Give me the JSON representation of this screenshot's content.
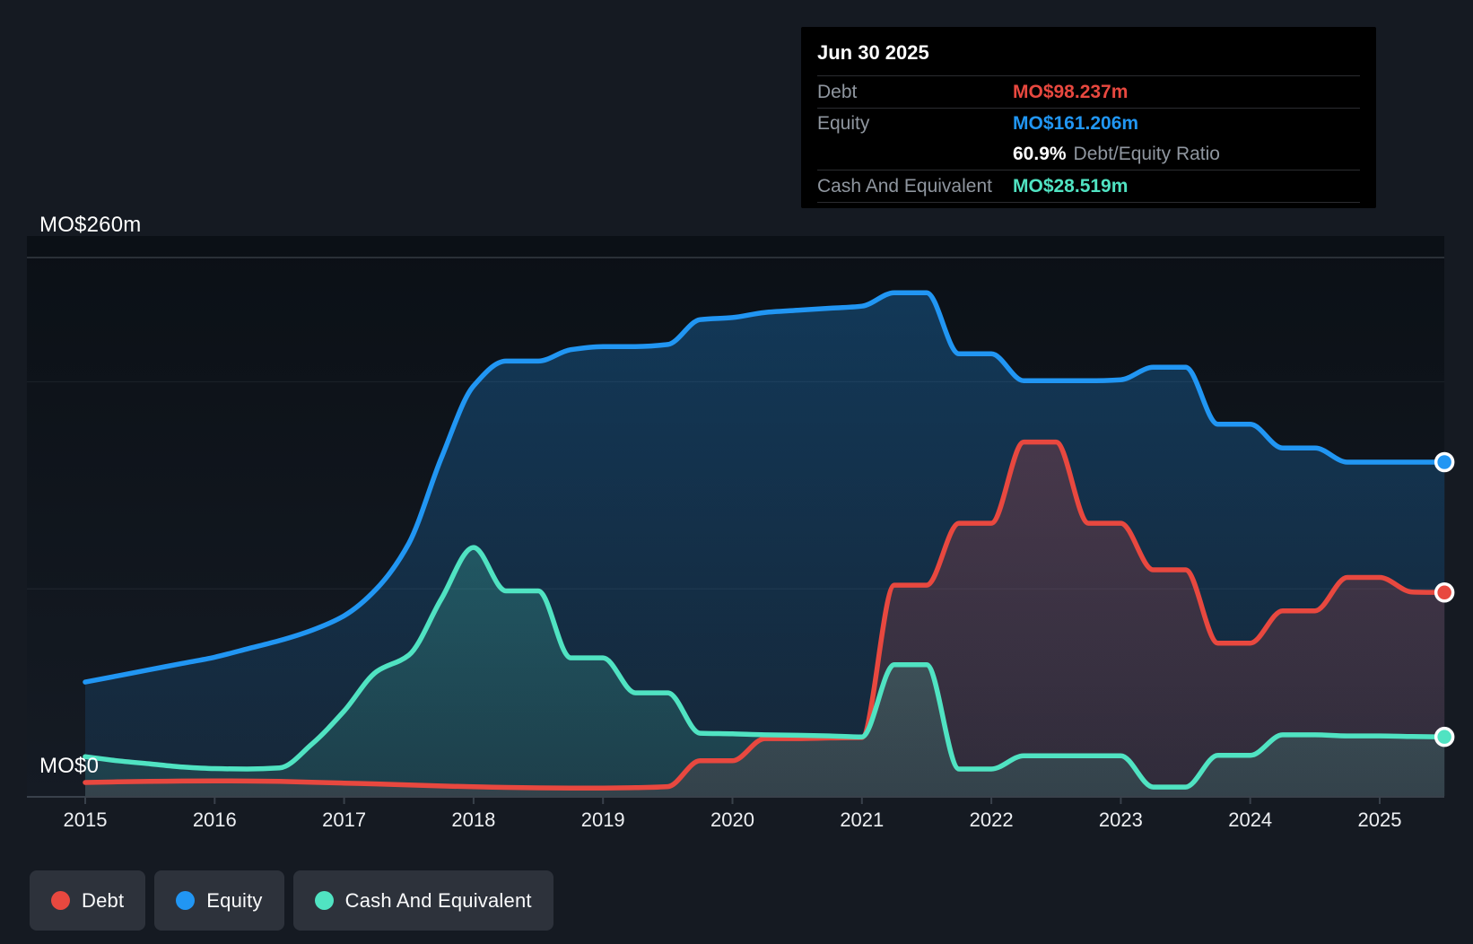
{
  "colors": {
    "debt": "#e8483f",
    "equity": "#2196f3",
    "cash": "#50e3c2",
    "page_bg": "#151a22",
    "plot_bg_top": "#0b1016",
    "plot_bg_bottom": "#151b24",
    "tooltip_bg": "#000000",
    "chip_bg": "#2d323b",
    "axis_line": "#39414b",
    "grid_strong": "rgba(200,212,224,0.22)",
    "grid_faint": "rgba(200,212,224,0.07)"
  },
  "tooltip": {
    "title": "Jun 30 2025",
    "debt_label": "Debt",
    "debt_value": "MO$98.237m",
    "equity_label": "Equity",
    "equity_value": "MO$161.206m",
    "ratio_value": "60.9%",
    "ratio_label": "Debt/Equity Ratio",
    "cash_label": "Cash And Equivalent",
    "cash_value": "MO$28.519m"
  },
  "y_axis": {
    "top_label": "MO$260m",
    "zero_label": "MO$0"
  },
  "legend": [
    {
      "id": "debt",
      "label": "Debt"
    },
    {
      "id": "equity",
      "label": "Equity"
    },
    {
      "id": "cash",
      "label": "Cash And Equivalent"
    }
  ],
  "chart_data": {
    "type": "area",
    "title": "Debt to Equity History (MO$ millions)",
    "x_unit": "year",
    "ylim": [
      0,
      260
    ],
    "xlim": [
      2015.0,
      2025.5
    ],
    "grid_values": [
      260,
      200,
      100,
      0
    ],
    "x_ticks": [
      "2015",
      "2016",
      "2017",
      "2018",
      "2019",
      "2020",
      "2021",
      "2022",
      "2023",
      "2024",
      "2025"
    ],
    "legend_position": "bottom-left",
    "series": [
      {
        "name": "Equity",
        "color_key": "equity",
        "end_marker": true,
        "points": [
          [
            2015.0,
            55
          ],
          [
            2015.25,
            58
          ],
          [
            2015.5,
            61
          ],
          [
            2015.75,
            64
          ],
          [
            2016.0,
            67
          ],
          [
            2016.25,
            71
          ],
          [
            2016.5,
            75
          ],
          [
            2016.75,
            80
          ],
          [
            2017.0,
            87
          ],
          [
            2017.25,
            100
          ],
          [
            2017.5,
            122
          ],
          [
            2017.75,
            163
          ],
          [
            2018.0,
            198
          ],
          [
            2018.25,
            210
          ],
          [
            2018.5,
            210
          ],
          [
            2018.75,
            215.5
          ],
          [
            2019.0,
            217
          ],
          [
            2019.25,
            217
          ],
          [
            2019.5,
            218
          ],
          [
            2019.75,
            230
          ],
          [
            2020.0,
            231
          ],
          [
            2020.25,
            233.5
          ],
          [
            2020.5,
            234.5
          ],
          [
            2020.75,
            235.5
          ],
          [
            2021.0,
            236.5
          ],
          [
            2021.25,
            243
          ],
          [
            2021.5,
            243
          ],
          [
            2021.75,
            213.5
          ],
          [
            2022.0,
            213.5
          ],
          [
            2022.25,
            200.5
          ],
          [
            2022.5,
            200.5
          ],
          [
            2022.75,
            200.5
          ],
          [
            2023.0,
            201
          ],
          [
            2023.25,
            207
          ],
          [
            2023.5,
            207
          ],
          [
            2023.75,
            179.5
          ],
          [
            2024.0,
            179.5
          ],
          [
            2024.25,
            168
          ],
          [
            2024.5,
            168
          ],
          [
            2024.75,
            161.2
          ],
          [
            2025.0,
            161.2
          ],
          [
            2025.25,
            161.2
          ],
          [
            2025.5,
            161.206
          ]
        ]
      },
      {
        "name": "Debt",
        "color_key": "debt",
        "end_marker": true,
        "points": [
          [
            2015.0,
            6.5
          ],
          [
            2015.25,
            6.8
          ],
          [
            2015.5,
            7.0
          ],
          [
            2015.75,
            7.2
          ],
          [
            2016.0,
            7.3
          ],
          [
            2016.25,
            7.2
          ],
          [
            2016.5,
            7.0
          ],
          [
            2016.75,
            6.6
          ],
          [
            2017.0,
            6.2
          ],
          [
            2017.25,
            5.8
          ],
          [
            2017.5,
            5.3
          ],
          [
            2017.75,
            4.8
          ],
          [
            2018.0,
            4.4
          ],
          [
            2018.25,
            4.1
          ],
          [
            2018.5,
            3.9
          ],
          [
            2018.75,
            3.8
          ],
          [
            2019.0,
            3.8
          ],
          [
            2019.25,
            4.0
          ],
          [
            2019.5,
            4.5
          ],
          [
            2019.75,
            17
          ],
          [
            2020.0,
            17
          ],
          [
            2020.25,
            27.7
          ],
          [
            2020.5,
            27.7
          ],
          [
            2020.75,
            28
          ],
          [
            2021.0,
            28.2
          ],
          [
            2021.25,
            101.8
          ],
          [
            2021.5,
            101.8
          ],
          [
            2021.75,
            131.7
          ],
          [
            2022.0,
            131.7
          ],
          [
            2022.25,
            170.9
          ],
          [
            2022.5,
            170.9
          ],
          [
            2022.75,
            131.7
          ],
          [
            2023.0,
            131.7
          ],
          [
            2023.25,
            109.2
          ],
          [
            2023.5,
            109.2
          ],
          [
            2023.75,
            73.8
          ],
          [
            2024.0,
            73.8
          ],
          [
            2024.25,
            89.4
          ],
          [
            2024.5,
            89.4
          ],
          [
            2024.75,
            105.5
          ],
          [
            2025.0,
            105.5
          ],
          [
            2025.25,
            98.5
          ],
          [
            2025.5,
            98.237
          ]
        ]
      },
      {
        "name": "Cash And Equivalent",
        "color_key": "cash",
        "end_marker": true,
        "points": [
          [
            2015.0,
            19
          ],
          [
            2015.25,
            17
          ],
          [
            2015.5,
            15.5
          ],
          [
            2015.75,
            14
          ],
          [
            2016.0,
            13.2
          ],
          [
            2016.25,
            13
          ],
          [
            2016.5,
            13.5
          ],
          [
            2016.75,
            25
          ],
          [
            2017.0,
            41
          ],
          [
            2017.25,
            60
          ],
          [
            2017.5,
            68
          ],
          [
            2017.75,
            95
          ],
          [
            2018.0,
            120
          ],
          [
            2018.25,
            99
          ],
          [
            2018.5,
            99
          ],
          [
            2018.75,
            66.7
          ],
          [
            2019.0,
            66.7
          ],
          [
            2019.25,
            49.8
          ],
          [
            2019.5,
            49.8
          ],
          [
            2019.75,
            30.3
          ],
          [
            2020.0,
            30
          ],
          [
            2020.25,
            29.5
          ],
          [
            2020.5,
            29.3
          ],
          [
            2020.75,
            29
          ],
          [
            2021.0,
            28.5
          ],
          [
            2021.25,
            63.4
          ],
          [
            2021.5,
            63.4
          ],
          [
            2021.75,
            13
          ],
          [
            2022.0,
            13
          ],
          [
            2022.25,
            19.4
          ],
          [
            2022.5,
            19.4
          ],
          [
            2022.75,
            19.4
          ],
          [
            2023.0,
            19.4
          ],
          [
            2023.25,
            4.3
          ],
          [
            2023.5,
            4.3
          ],
          [
            2023.75,
            19.6
          ],
          [
            2024.0,
            19.6
          ],
          [
            2024.25,
            29.5
          ],
          [
            2024.5,
            29.5
          ],
          [
            2024.75,
            29
          ],
          [
            2025.0,
            29
          ],
          [
            2025.25,
            28.7
          ],
          [
            2025.5,
            28.519
          ]
        ]
      }
    ]
  }
}
